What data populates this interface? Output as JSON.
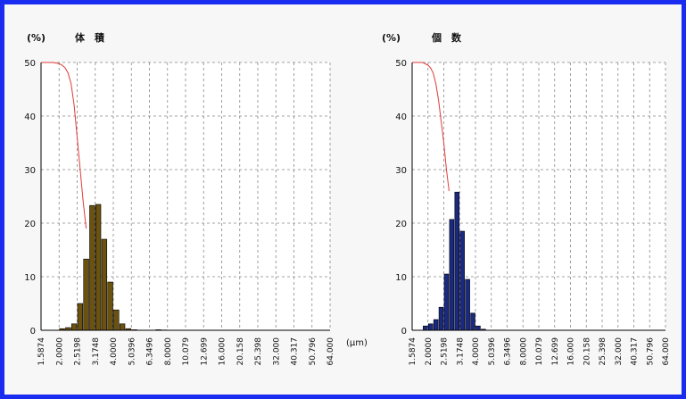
{
  "chart_data": [
    {
      "type": "bar",
      "title": "体　積",
      "ylabel": "(%)",
      "xlabel": "",
      "ylim": [
        0,
        50
      ],
      "yticks": [
        0,
        10,
        20,
        30,
        40,
        50
      ],
      "x_tick_labels": [
        "1.5874",
        "2.0000",
        "2.5198",
        "3.1748",
        "4.0000",
        "5.0396",
        "6.3496",
        "8.0000",
        "10.079",
        "12.699",
        "16.000",
        "20.158",
        "25.398",
        "32.000",
        "40.317",
        "50.796",
        "64.000"
      ],
      "grid": true,
      "bar_color": "#6b5210",
      "line_color": "#e03a3a",
      "bars": [
        0,
        0,
        0,
        0.3,
        0.5,
        1.2,
        5.0,
        13.3,
        23.3,
        23.5,
        17.0,
        9.0,
        3.8,
        1.2,
        0.3,
        0.1,
        0,
        0,
        0,
        0.1,
        0.05,
        0,
        0,
        0,
        0,
        0,
        0,
        0,
        0,
        0,
        0,
        0,
        0,
        0,
        0,
        0,
        0,
        0,
        0,
        0,
        0,
        0,
        0,
        0,
        0,
        0,
        0,
        0
      ],
      "cumulative": [
        [
          0,
          50
        ],
        [
          1,
          50
        ],
        [
          2,
          50
        ],
        [
          3,
          49.8
        ],
        [
          3.5,
          49.5
        ],
        [
          4,
          49
        ],
        [
          4.5,
          48
        ],
        [
          5,
          46
        ],
        [
          5.5,
          42
        ],
        [
          6,
          36
        ],
        [
          6.5,
          30
        ],
        [
          7,
          24
        ],
        [
          7.5,
          19
        ]
      ]
    },
    {
      "type": "bar",
      "title": "個　数",
      "ylabel": "(%)",
      "xlabel": "(μm)",
      "ylim": [
        0,
        50
      ],
      "yticks": [
        0,
        10,
        20,
        30,
        40,
        50
      ],
      "x_tick_labels": [
        "1.5874",
        "2.0000",
        "2.5198",
        "3.1748",
        "4.0000",
        "5.0396",
        "6.3496",
        "8.0000",
        "10.079",
        "12.699",
        "16.000",
        "20.158",
        "25.398",
        "32.000",
        "40.317",
        "50.796",
        "64.000"
      ],
      "grid": true,
      "bar_color": "#1a2a80",
      "line_color": "#e03a3a",
      "bars": [
        0,
        0,
        0.8,
        1.2,
        2.0,
        4.3,
        10.5,
        20.7,
        25.8,
        18.5,
        9.5,
        3.2,
        0.8,
        0.2,
        0,
        0,
        0,
        0,
        0,
        0,
        0,
        0,
        0,
        0,
        0,
        0,
        0,
        0,
        0,
        0,
        0,
        0,
        0,
        0,
        0,
        0,
        0,
        0,
        0,
        0,
        0,
        0,
        0,
        0,
        0,
        0,
        0,
        0
      ],
      "cumulative": [
        [
          0,
          50
        ],
        [
          1,
          50
        ],
        [
          2,
          50
        ],
        [
          3,
          49.5
        ],
        [
          3.5,
          49
        ],
        [
          4,
          48
        ],
        [
          4.5,
          46
        ],
        [
          5,
          43
        ],
        [
          5.5,
          39
        ],
        [
          6,
          35
        ],
        [
          6.5,
          30
        ],
        [
          7,
          26
        ]
      ]
    }
  ]
}
